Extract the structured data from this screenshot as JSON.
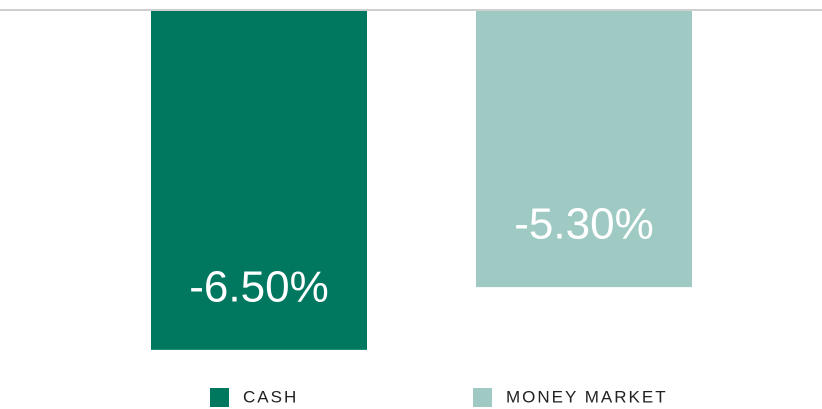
{
  "chart_data": {
    "type": "bar",
    "series": [
      {
        "name": "CASH",
        "color": "#00785f",
        "values": [
          -6.5
        ],
        "value_labels": [
          "-6.50%"
        ]
      },
      {
        "name": "MONEY MARKET",
        "color": "#9ecac3",
        "values": [
          -5.3
        ],
        "value_labels": [
          "-5.30%"
        ]
      }
    ],
    "ylim": [
      -7,
      0
    ]
  }
}
